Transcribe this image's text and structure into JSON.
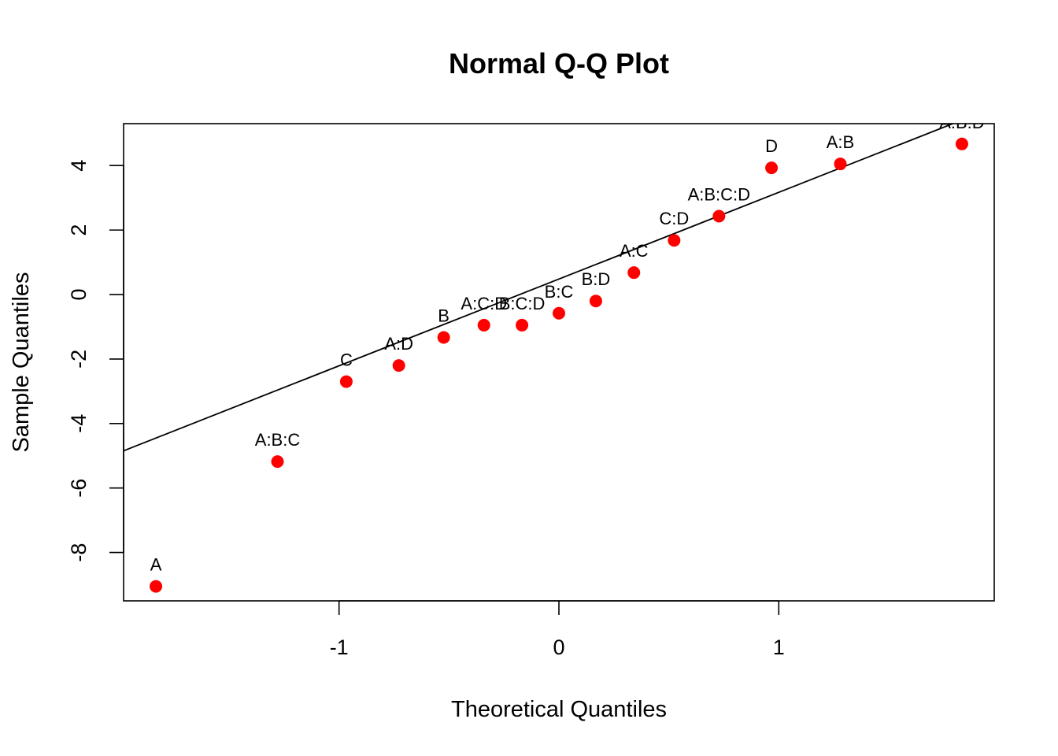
{
  "chart_data": {
    "type": "scatter",
    "title": "Normal Q-Q Plot",
    "xlabel": "Theoretical Quantiles",
    "ylabel": "Sample Quantiles",
    "xlim": [
      -1.98,
      1.98
    ],
    "ylim": [
      -9.5,
      5.3
    ],
    "xticks": [
      -1,
      0,
      1
    ],
    "xtick_labels": [
      "-1",
      "0",
      "1"
    ],
    "yticks": [
      -8,
      -6,
      -4,
      -2,
      0,
      2,
      4
    ],
    "ytick_labels": [
      "-8",
      "-6",
      "-4",
      "-2",
      "0",
      "2",
      "4"
    ],
    "point_color": "#ff0000",
    "line_color": "#000000",
    "reference_line": {
      "intercept": 0.48,
      "slope": 2.69
    },
    "points": [
      {
        "label": "A",
        "x": -1.833,
        "y": -9.05
      },
      {
        "label": "A:B:C",
        "x": -1.28,
        "y": -5.18
      },
      {
        "label": "C",
        "x": -0.967,
        "y": -2.7
      },
      {
        "label": "A:D",
        "x": -0.728,
        "y": -2.2
      },
      {
        "label": "B",
        "x": -0.524,
        "y": -1.33
      },
      {
        "label": "A:C:D",
        "x": -0.341,
        "y": -0.95
      },
      {
        "label": "B:C:D",
        "x": -0.168,
        "y": -0.95
      },
      {
        "label": "B:C",
        "x": 0.0,
        "y": -0.58
      },
      {
        "label": "B:D",
        "x": 0.168,
        "y": -0.2
      },
      {
        "label": "A:C",
        "x": 0.341,
        "y": 0.68
      },
      {
        "label": "C:D",
        "x": 0.524,
        "y": 1.68
      },
      {
        "label": "A:B:C:D",
        "x": 0.728,
        "y": 2.43
      },
      {
        "label": "D",
        "x": 0.967,
        "y": 3.93
      },
      {
        "label": "A:B",
        "x": 1.28,
        "y": 4.05
      },
      {
        "label": "A:B:D",
        "x": 1.833,
        "y": 4.67
      }
    ]
  }
}
